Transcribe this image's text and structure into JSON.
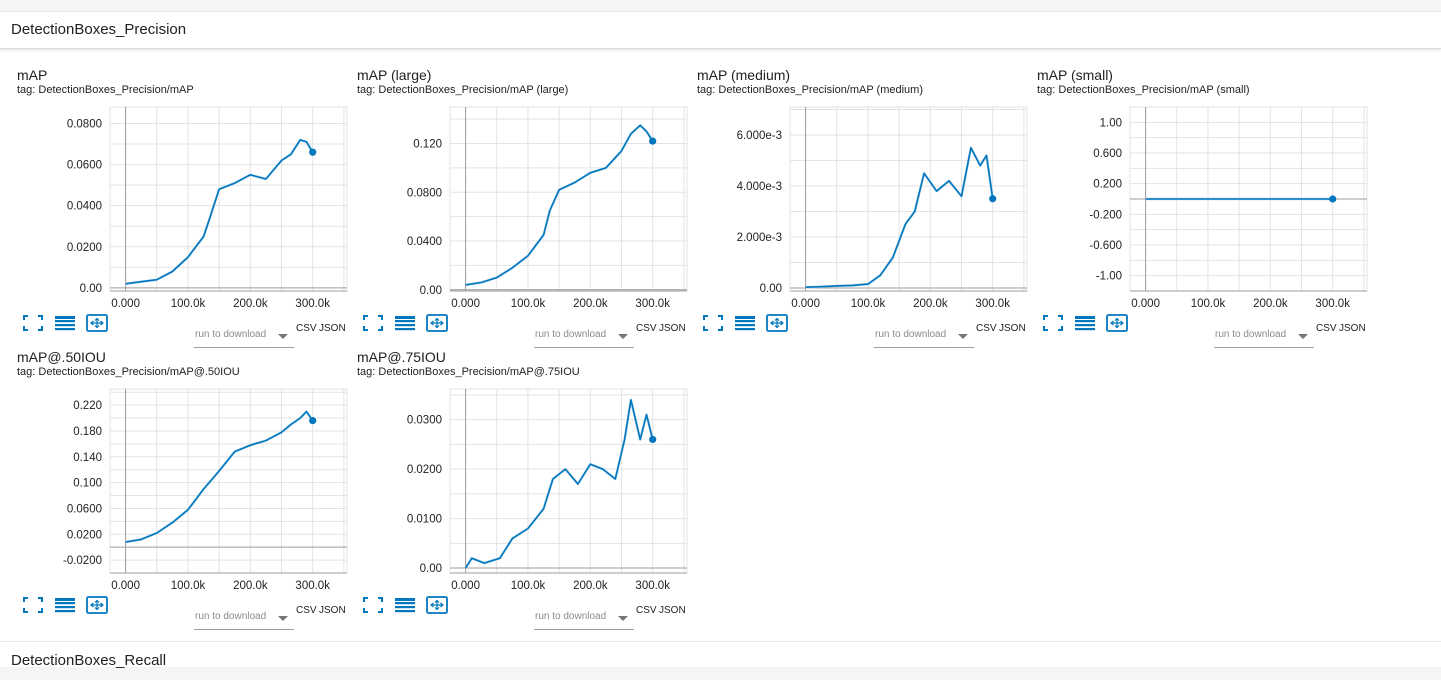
{
  "colors": {
    "line": "#0277bd",
    "raw": "#b3d6ec",
    "grid": "#e3e3e3",
    "axis": "#9e9e9e",
    "icon": "#0277bd"
  },
  "sections": [
    {
      "title": "DetectionBoxes_Precision"
    },
    {
      "title": "DetectionBoxes_Recall"
    }
  ],
  "cards": [
    {
      "title": "mAP",
      "tag": "tag: DetectionBoxes_Precision/mAP",
      "download_label": "run to download",
      "csv_label": "CSV",
      "json_label": "JSON",
      "icons": [
        "fit-domain-icon",
        "data-table-icon",
        "expand-chart-icon"
      ],
      "chart_data": {
        "type": "line",
        "x_ticks": [
          "0.000",
          "100.0k",
          "200.0k",
          "300.0k"
        ],
        "y_ticks": [
          "0.00",
          "0.0200",
          "0.0400",
          "0.0600",
          "0.0800"
        ],
        "y_tick_values": [
          0,
          0.02,
          0.04,
          0.06,
          0.08
        ],
        "xlim": [
          -25000,
          355000
        ],
        "ylim": [
          -0.0015,
          0.088
        ],
        "series": [
          {
            "x": [
              0,
              25000,
              50000,
              75000,
              100000,
              125000,
              135000,
              150000,
              175000,
              200000,
              225000,
              250000,
              265000,
              280000,
              290000,
              300000
            ],
            "y": [
              0.002,
              0.003,
              0.004,
              0.008,
              0.015,
              0.025,
              0.034,
              0.048,
              0.051,
              0.055,
              0.053,
              0.062,
              0.065,
              0.072,
              0.071,
              0.066
            ]
          }
        ]
      }
    },
    {
      "title": "mAP (large)",
      "tag": "tag: DetectionBoxes_Precision/mAP (large)",
      "download_label": "run to download",
      "csv_label": "CSV",
      "json_label": "JSON",
      "icons": [
        "fit-domain-icon",
        "data-table-icon",
        "expand-chart-icon"
      ],
      "chart_data": {
        "type": "line",
        "x_ticks": [
          "0.000",
          "100.0k",
          "200.0k",
          "300.0k"
        ],
        "y_ticks": [
          "0.00",
          "0.0400",
          "0.0800",
          "0.120"
        ],
        "y_tick_values": [
          0,
          0.04,
          0.08,
          0.12
        ],
        "xlim": [
          -25000,
          355000
        ],
        "ylim": [
          -0.001,
          0.15
        ],
        "series": [
          {
            "x": [
              0,
              25000,
              50000,
              75000,
              100000,
              125000,
              135000,
              150000,
              175000,
              200000,
              225000,
              250000,
              265000,
              280000,
              290000,
              300000
            ],
            "y": [
              0.004,
              0.006,
              0.01,
              0.018,
              0.028,
              0.045,
              0.065,
              0.082,
              0.088,
              0.096,
              0.1,
              0.114,
              0.128,
              0.135,
              0.13,
              0.122
            ]
          }
        ]
      }
    },
    {
      "title": "mAP (medium)",
      "tag": "tag: DetectionBoxes_Precision/mAP (medium)",
      "download_label": "run to download",
      "csv_label": "CSV",
      "json_label": "JSON",
      "icons": [
        "fit-domain-icon",
        "data-table-icon",
        "expand-chart-icon"
      ],
      "chart_data": {
        "type": "line",
        "x_ticks": [
          "0.000",
          "100.0k",
          "200.0k",
          "300.0k"
        ],
        "y_ticks": [
          "0.00",
          "2.000e-3",
          "4.000e-3",
          "6.000e-3"
        ],
        "y_tick_values": [
          0,
          0.002,
          0.004,
          0.006
        ],
        "xlim": [
          -25000,
          355000
        ],
        "ylim": [
          -0.00012,
          0.0071
        ],
        "series": [
          {
            "x": [
              0,
              25000,
              50000,
              75000,
              100000,
              120000,
              140000,
              160000,
              175000,
              190000,
              210000,
              230000,
              250000,
              265000,
              280000,
              290000,
              300000
            ],
            "y": [
              3e-05,
              5e-05,
              8e-05,
              0.0001,
              0.00015,
              0.0005,
              0.0012,
              0.0025,
              0.003,
              0.0045,
              0.0038,
              0.0042,
              0.0036,
              0.0055,
              0.0048,
              0.0052,
              0.0035
            ]
          }
        ]
      }
    },
    {
      "title": "mAP (small)",
      "tag": "tag: DetectionBoxes_Precision/mAP (small)",
      "download_label": "run to download",
      "csv_label": "CSV",
      "json_label": "JSON",
      "icons": [
        "fit-domain-icon",
        "data-table-icon",
        "expand-chart-icon"
      ],
      "chart_data": {
        "type": "line",
        "x_ticks": [
          "0.000",
          "100.0k",
          "200.0k",
          "300.0k"
        ],
        "y_ticks": [
          "-1.00",
          "-0.600",
          "-0.200",
          "0.200",
          "0.600",
          "1.00"
        ],
        "y_tick_values": [
          -1,
          -0.6,
          -0.2,
          0.2,
          0.6,
          1
        ],
        "xlim": [
          -25000,
          355000
        ],
        "ylim": [
          -1.2,
          1.2
        ],
        "series": [
          {
            "x": [
              0,
              100000,
              200000,
              300000
            ],
            "y": [
              0,
              0,
              0,
              0
            ]
          }
        ]
      }
    },
    {
      "title": "mAP@.50IOU",
      "tag": "tag: DetectionBoxes_Precision/mAP@.50IOU",
      "download_label": "run to download",
      "csv_label": "CSV",
      "json_label": "JSON",
      "icons": [
        "fit-domain-icon",
        "data-table-icon",
        "expand-chart-icon"
      ],
      "chart_data": {
        "type": "line",
        "x_ticks": [
          "0.000",
          "100.0k",
          "200.0k",
          "300.0k"
        ],
        "y_ticks": [
          "-0.0200",
          "0.0200",
          "0.0600",
          "0.100",
          "0.140",
          "0.180",
          "0.220"
        ],
        "y_tick_values": [
          -0.02,
          0.02,
          0.06,
          0.1,
          0.14,
          0.18,
          0.22
        ],
        "xlim": [
          -25000,
          355000
        ],
        "ylim": [
          -0.04,
          0.245
        ],
        "series": [
          {
            "x": [
              0,
              25000,
              50000,
              75000,
              100000,
              125000,
              150000,
              175000,
              200000,
              225000,
              250000,
              265000,
              280000,
              290000,
              300000
            ],
            "y": [
              0.008,
              0.012,
              0.022,
              0.038,
              0.058,
              0.09,
              0.118,
              0.148,
              0.158,
              0.165,
              0.178,
              0.19,
              0.2,
              0.21,
              0.196
            ]
          }
        ]
      }
    },
    {
      "title": "mAP@.75IOU",
      "tag": "tag: DetectionBoxes_Precision/mAP@.75IOU",
      "download_label": "run to download",
      "csv_label": "CSV",
      "json_label": "JSON",
      "icons": [
        "fit-domain-icon",
        "data-table-icon",
        "expand-chart-icon"
      ],
      "chart_data": {
        "type": "line",
        "x_ticks": [
          "0.000",
          "100.0k",
          "200.0k",
          "300.0k"
        ],
        "y_ticks": [
          "0.00",
          "0.0100",
          "0.0200",
          "0.0300"
        ],
        "y_tick_values": [
          0,
          0.01,
          0.02,
          0.03
        ],
        "xlim": [
          -25000,
          355000
        ],
        "ylim": [
          -0.001,
          0.0362
        ],
        "series": [
          {
            "x": [
              0,
              10000,
              30000,
              55000,
              75000,
              100000,
              125000,
              140000,
              160000,
              180000,
              200000,
              220000,
              240000,
              255000,
              265000,
              280000,
              290000,
              300000
            ],
            "y": [
              0,
              0.002,
              0.001,
              0.002,
              0.006,
              0.008,
              0.012,
              0.018,
              0.02,
              0.017,
              0.021,
              0.02,
              0.018,
              0.026,
              0.034,
              0.026,
              0.031,
              0.026
            ]
          }
        ]
      }
    }
  ]
}
